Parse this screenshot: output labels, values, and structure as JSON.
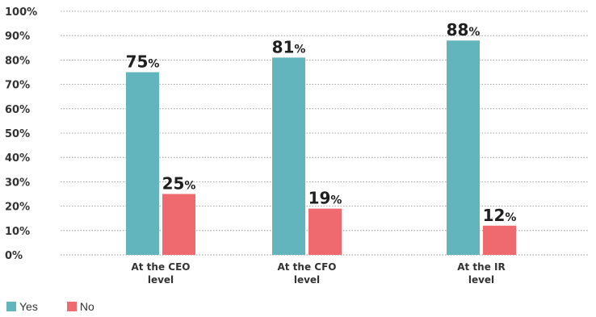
{
  "chart_data": {
    "type": "bar",
    "categories": [
      [
        "At the CEO",
        "level"
      ],
      [
        "At the CFO",
        "level"
      ],
      [
        "At the IR",
        "level"
      ]
    ],
    "series": [
      {
        "name": "Yes",
        "color": "#62b5bd",
        "values": [
          75,
          81,
          88
        ],
        "labels": [
          "75",
          "81",
          "88"
        ]
      },
      {
        "name": "No",
        "color": "#ef6a6e",
        "values": [
          25,
          19,
          12
        ],
        "labels": [
          "25",
          "19",
          "12"
        ]
      }
    ],
    "ylim": [
      0,
      100
    ],
    "yticks": [
      "0%",
      "10%",
      "20%",
      "30%",
      "40%",
      "50%",
      "60%",
      "70%",
      "80%",
      "90%",
      "100%"
    ],
    "value_suffix": "%",
    "grid": true,
    "legend_position": "bottom-left"
  }
}
